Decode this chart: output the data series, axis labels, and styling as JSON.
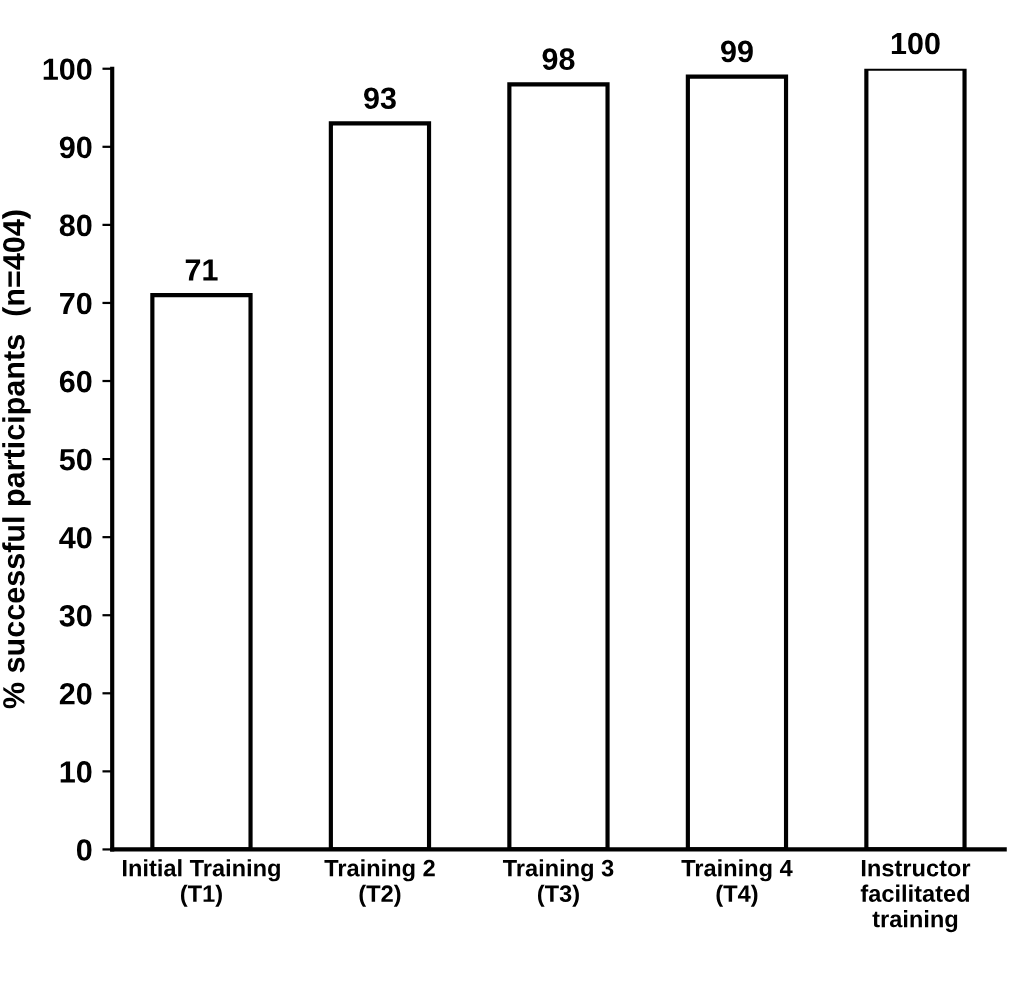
{
  "chart_data": {
    "type": "bar",
    "ylabel": "% successful participants  (n=404)",
    "categories": [
      "Initial Training\n(T1)",
      "Training 2\n(T2)",
      "Training 3\n(T3)",
      "Training 4\n(T4)",
      "Instructor\nfacilitated\ntraining"
    ],
    "values": [
      71,
      93,
      98,
      99,
      100
    ],
    "color": "#ffffff",
    "ylim": [
      0,
      100
    ],
    "yticks": [
      0,
      10,
      20,
      30,
      40,
      50,
      60,
      70,
      80,
      90,
      100
    ],
    "grid": false,
    "data_labels": true
  }
}
